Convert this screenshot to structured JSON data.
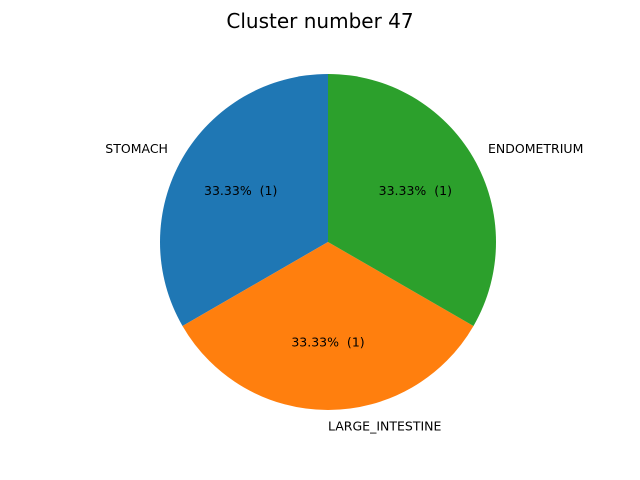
{
  "chart_data": {
    "type": "pie",
    "title": "Cluster number 47",
    "categories": [
      "STOMACH",
      "LARGE_INTESTINE",
      "ENDOMETRIUM"
    ],
    "values": [
      1,
      1,
      1
    ],
    "slice_labels": [
      "33.33%  (1)",
      "33.33%  (1)",
      "33.33%  (1)"
    ],
    "colors": [
      "#1f77b4",
      "#ff7f0e",
      "#2ca02c"
    ],
    "start_angle_deg": 90,
    "direction": "counterclockwise"
  }
}
